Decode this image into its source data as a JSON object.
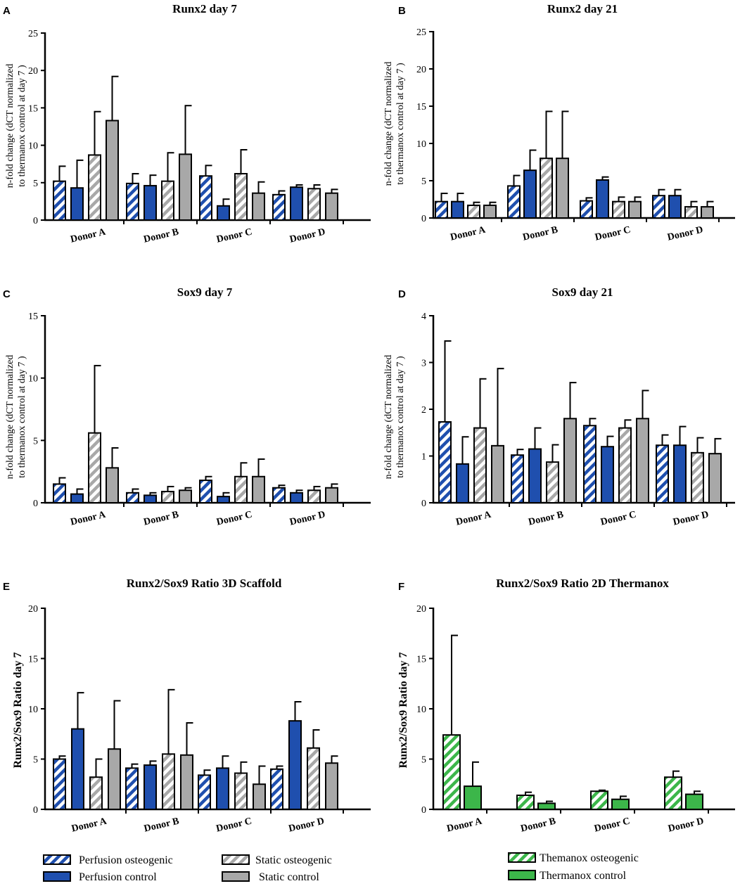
{
  "colors": {
    "perfusion_blue": "#1f4fae",
    "static_grey": "#a8a8a8",
    "hatch_white": "#ffffff",
    "thermanox_green": "#3cb64a",
    "axis": "#000000"
  },
  "legend_left": {
    "items": [
      {
        "label": "Perfusion osteogenic",
        "style": "hatch",
        "color": "#1f4fae"
      },
      {
        "label": "Perfusion control",
        "style": "solid",
        "color": "#1f4fae"
      },
      {
        "label": "Static osteogenic",
        "style": "hatch",
        "color": "#a8a8a8"
      },
      {
        "label": "Static control",
        "style": "solid",
        "color": "#a8a8a8"
      }
    ]
  },
  "legend_right": {
    "items": [
      {
        "label": "Themanox osteogenic",
        "style": "hatch",
        "color": "#3cb64a"
      },
      {
        "label": "Thermanox control",
        "style": "solid",
        "color": "#3cb64a"
      }
    ]
  },
  "chart_data": [
    {
      "panel": "A",
      "type": "bar",
      "title": "Runx2 day 7",
      "ylabel": "n-fold change (dCT normalized to thermanox control at day 7 )",
      "ylim": [
        0,
        25
      ],
      "yticks": [
        0,
        5,
        10,
        15,
        20,
        25
      ],
      "categories": [
        "Donor A",
        "Donor B",
        "Donor C",
        "Donor D"
      ],
      "series": [
        {
          "name": "Perfusion osteogenic",
          "values": [
            5.2,
            4.9,
            5.9,
            3.4
          ],
          "errors": [
            2.0,
            1.3,
            1.4,
            0.5
          ]
        },
        {
          "name": "Perfusion control",
          "values": [
            4.3,
            4.6,
            1.9,
            4.4
          ],
          "errors": [
            3.7,
            1.4,
            0.9,
            0.3
          ]
        },
        {
          "name": "Static osteogenic",
          "values": [
            8.7,
            5.2,
            6.2,
            4.2
          ],
          "errors": [
            5.8,
            3.8,
            3.2,
            0.5
          ]
        },
        {
          "name": "Static control",
          "values": [
            13.3,
            8.8,
            3.6,
            3.6
          ],
          "errors": [
            5.9,
            6.5,
            1.5,
            0.5
          ]
        }
      ]
    },
    {
      "panel": "B",
      "type": "bar",
      "title": "Runx2 day 21",
      "ylabel": "n-fold change (dCT normalized to thermanox control at day 7 )",
      "ylim": [
        0,
        25
      ],
      "yticks": [
        0,
        5,
        10,
        15,
        20,
        25
      ],
      "categories": [
        "Donor A",
        "Donor B",
        "Donor C",
        "Donor D"
      ],
      "series": [
        {
          "name": "Perfusion osteogenic",
          "values": [
            2.2,
            4.3,
            2.3,
            3.0
          ],
          "errors": [
            1.1,
            1.4,
            0.4,
            0.8
          ]
        },
        {
          "name": "Perfusion control",
          "values": [
            2.2,
            6.4,
            5.1,
            3.0
          ],
          "errors": [
            1.1,
            2.7,
            0.4,
            0.8
          ]
        },
        {
          "name": "Static osteogenic",
          "values": [
            1.7,
            8.0,
            2.2,
            1.5
          ],
          "errors": [
            0.4,
            6.3,
            0.6,
            0.7
          ]
        },
        {
          "name": "Static control",
          "values": [
            1.7,
            8.0,
            2.2,
            1.5
          ],
          "errors": [
            0.4,
            6.3,
            0.6,
            0.7
          ]
        }
      ]
    },
    {
      "panel": "C",
      "type": "bar",
      "title": "Sox9 day 7",
      "ylabel": "n-fold change (dCT normalized to thermanox control at day 7 )",
      "ylim": [
        0,
        15
      ],
      "yticks": [
        0,
        5,
        10,
        15
      ],
      "categories": [
        "Donor A",
        "Donor B",
        "Donor C",
        "Donor D"
      ],
      "series": [
        {
          "name": "Perfusion osteogenic",
          "values": [
            1.5,
            0.8,
            1.8,
            1.2
          ],
          "errors": [
            0.5,
            0.3,
            0.3,
            0.2
          ]
        },
        {
          "name": "Perfusion control",
          "values": [
            0.7,
            0.6,
            0.5,
            0.8
          ],
          "errors": [
            0.4,
            0.2,
            0.3,
            0.2
          ]
        },
        {
          "name": "Static osteogenic",
          "values": [
            5.6,
            0.9,
            2.1,
            1.0
          ],
          "errors": [
            5.4,
            0.4,
            1.1,
            0.3
          ]
        },
        {
          "name": "Static control",
          "values": [
            2.8,
            1.0,
            2.1,
            1.2
          ],
          "errors": [
            1.6,
            0.2,
            1.4,
            0.3
          ]
        }
      ]
    },
    {
      "panel": "D",
      "type": "bar",
      "title": "Sox9 day 21",
      "ylabel": "n-fold change (dCT normalized to thermanox control at day 7 )",
      "ylim": [
        0,
        4
      ],
      "yticks": [
        0,
        1,
        2,
        3,
        4
      ],
      "categories": [
        "Donor A",
        "Donor B",
        "Donor C",
        "Donor D"
      ],
      "series": [
        {
          "name": "Perfusion osteogenic",
          "values": [
            1.73,
            1.02,
            1.65,
            1.23
          ],
          "errors": [
            1.73,
            0.12,
            0.15,
            0.22
          ]
        },
        {
          "name": "Perfusion control",
          "values": [
            0.83,
            1.15,
            1.2,
            1.23
          ],
          "errors": [
            0.58,
            0.45,
            0.22,
            0.4
          ]
        },
        {
          "name": "Static osteogenic",
          "values": [
            1.6,
            0.87,
            1.6,
            1.07
          ],
          "errors": [
            1.05,
            0.37,
            0.17,
            0.32
          ]
        },
        {
          "name": "Static control",
          "values": [
            1.22,
            1.8,
            1.8,
            1.05
          ],
          "errors": [
            1.65,
            0.77,
            0.6,
            0.32
          ]
        }
      ]
    },
    {
      "panel": "E",
      "type": "bar",
      "title": "Runx2/Sox9 Ratio 3D Scaffold",
      "ylabel": "Runx2/Sox9 Ratio day 7",
      "ylim": [
        0,
        20
      ],
      "yticks": [
        0,
        5,
        10,
        15,
        20
      ],
      "categories": [
        "Donor A",
        "Donor B",
        "Donor C",
        "Donor D"
      ],
      "series": [
        {
          "name": "Perfusion osteogenic",
          "values": [
            5.0,
            4.1,
            3.4,
            4.0
          ],
          "errors": [
            0.3,
            0.4,
            0.5,
            0.3
          ]
        },
        {
          "name": "Perfusion control",
          "values": [
            8.0,
            4.4,
            4.1,
            8.8
          ],
          "errors": [
            3.6,
            0.4,
            1.2,
            1.9
          ]
        },
        {
          "name": "Static osteogenic",
          "values": [
            3.2,
            5.5,
            3.6,
            6.1
          ],
          "errors": [
            1.8,
            6.4,
            1.1,
            1.8
          ]
        },
        {
          "name": "Static control",
          "values": [
            6.0,
            5.4,
            2.5,
            4.6
          ],
          "errors": [
            4.8,
            3.2,
            1.8,
            0.7
          ]
        }
      ]
    },
    {
      "panel": "F",
      "type": "bar",
      "title": "Runx2/Sox9 Ratio 2D Thermanox",
      "ylabel": "Runx2/Sox9 Ratio day 7",
      "ylim": [
        0,
        20
      ],
      "yticks": [
        0,
        5,
        10,
        15,
        20
      ],
      "categories": [
        "Donor A",
        "Donor B",
        "Donor C",
        "Donor D"
      ],
      "series": [
        {
          "name": "Themanox osteogenic",
          "values": [
            7.4,
            1.4,
            1.8,
            3.2
          ],
          "errors": [
            9.9,
            0.3,
            0.1,
            0.6
          ]
        },
        {
          "name": "Thermanox control",
          "values": [
            2.3,
            0.6,
            1.0,
            1.5
          ],
          "errors": [
            2.4,
            0.2,
            0.3,
            0.3
          ]
        }
      ]
    }
  ]
}
